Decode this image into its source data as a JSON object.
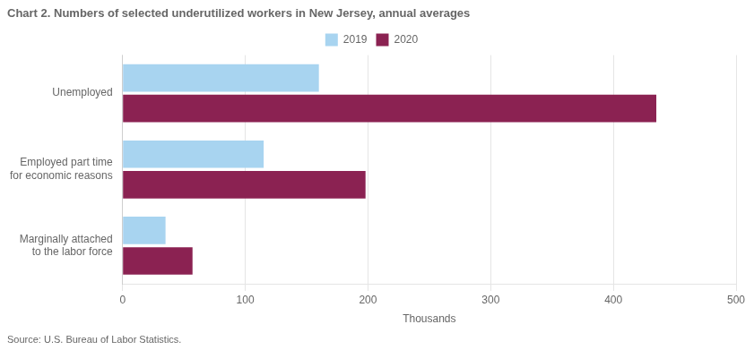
{
  "chart_data": {
    "type": "bar",
    "orientation": "horizontal",
    "title": "Chart 2. Numbers of selected underutilized workers in New Jersey, annual averages",
    "categories": [
      "Unemployed",
      "Employed part time\nfor economic reasons",
      "Marginally attached\nto the labor force"
    ],
    "series": [
      {
        "name": "2019",
        "color": "#a8d4f0",
        "values": [
          160,
          115,
          35
        ]
      },
      {
        "name": "2020",
        "color": "#8B2252",
        "values": [
          435,
          198,
          57
        ]
      }
    ],
    "xlabel": "Thousands",
    "xlim": [
      0,
      500
    ],
    "xticks": [
      0,
      100,
      200,
      300,
      400,
      500
    ],
    "grid": true,
    "legend": "top",
    "annotations": [
      "Source: U.S. Bureau of Labor Statistics."
    ]
  }
}
